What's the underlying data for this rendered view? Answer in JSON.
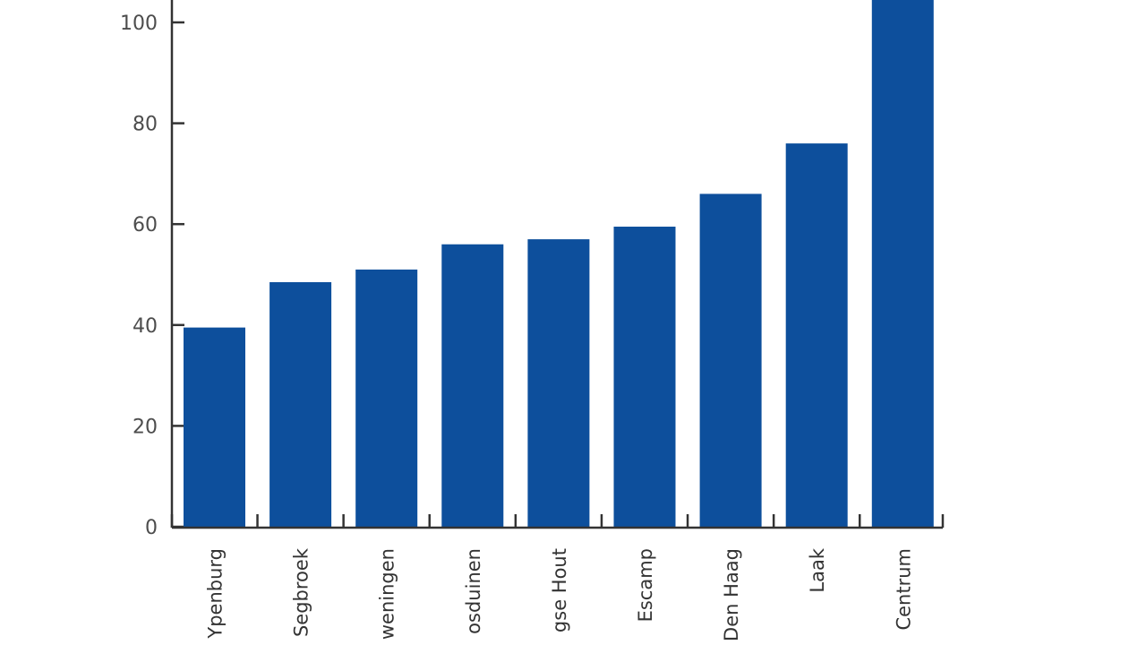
{
  "chart_data": {
    "type": "bar",
    "categories": [
      "Ypenburg",
      "Segbroek",
      "Loosduinen/Kijkduin/Scheveningen",
      "Loosduinen",
      "Haagse Hout",
      "Escamp",
      "Den Haag",
      "Laak",
      "Centrum"
    ],
    "visible_labels": [
      "Ypenburg",
      "Segbroek",
      "weningen",
      "osduinen",
      "gse Hout",
      "Escamp",
      "Den Haag",
      "Laak",
      "Centrum"
    ],
    "values": [
      39.5,
      48.5,
      51,
      56,
      57,
      59.5,
      66,
      76,
      105
    ],
    "ylim": [
      0,
      100
    ],
    "yticks": [
      0,
      20,
      40,
      60,
      80,
      100
    ],
    "title": "",
    "xlabel": "",
    "ylabel": "",
    "grid": false,
    "colors": {
      "bar": "#0d4f9c",
      "axis": "#333333",
      "text": "#4d4d4d"
    }
  }
}
